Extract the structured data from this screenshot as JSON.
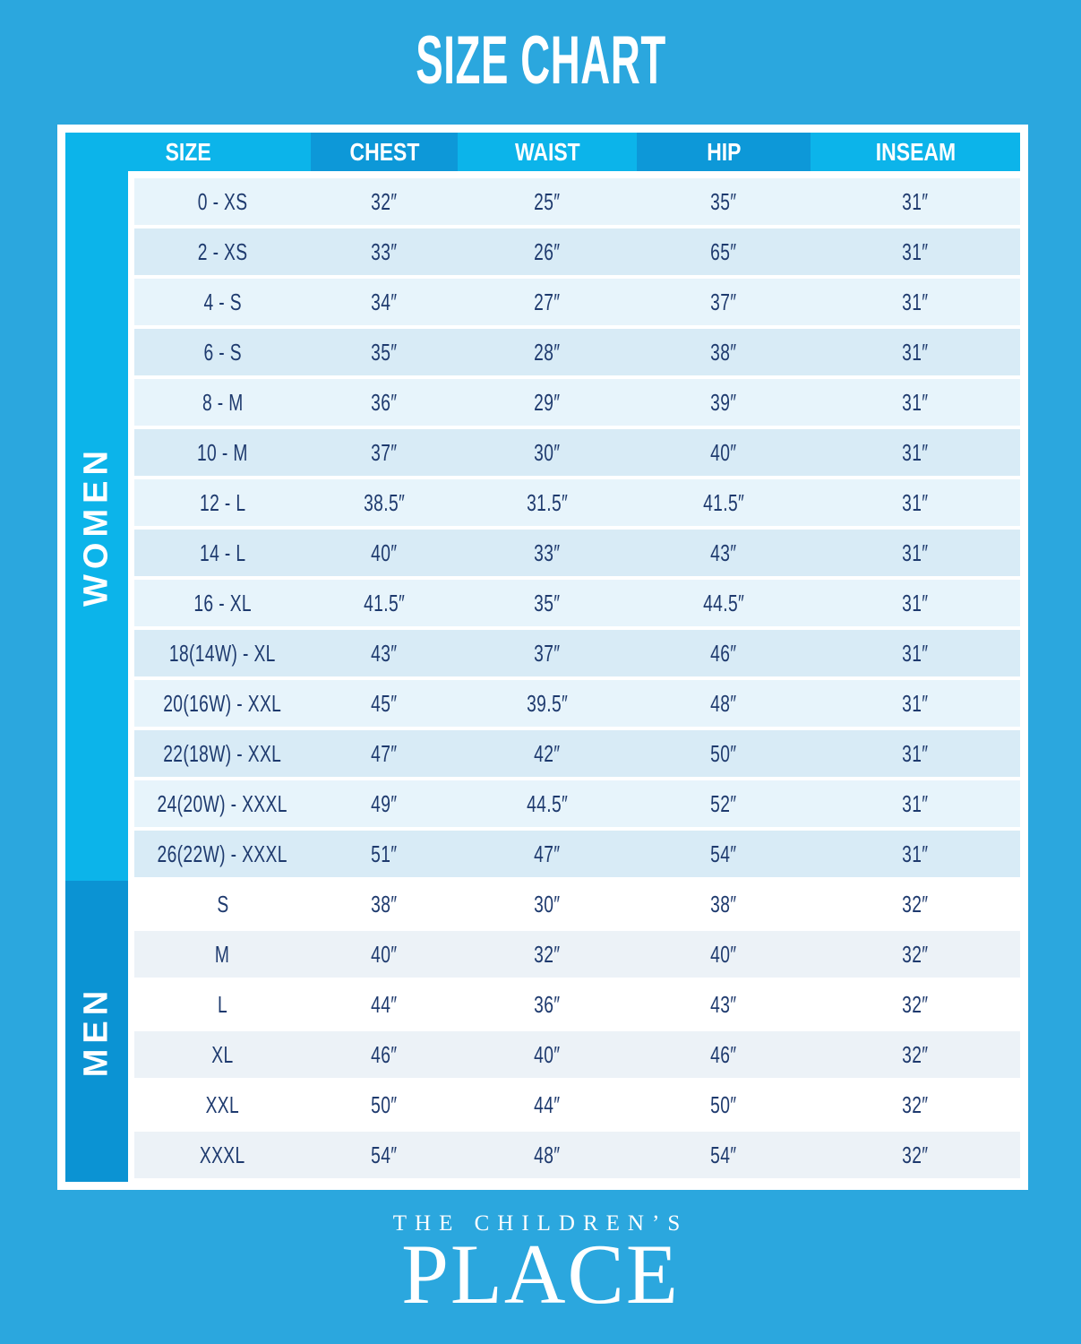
{
  "chart_data": {
    "type": "table",
    "title": "SIZE CHART",
    "columns": [
      "SIZE",
      "CHEST",
      "WAIST",
      "HIP",
      "INSEAM"
    ],
    "sections": [
      {
        "label": "WOMEN",
        "rows": [
          [
            "0 - XS",
            "32″",
            "25″",
            "35″",
            "31″"
          ],
          [
            "2 - XS",
            "33″",
            "26″",
            "65″",
            "31″"
          ],
          [
            "4 - S",
            "34″",
            "27″",
            "37″",
            "31″"
          ],
          [
            "6 - S",
            "35″",
            "28″",
            "38″",
            "31″"
          ],
          [
            "8 - M",
            "36″",
            "29″",
            "39″",
            "31″"
          ],
          [
            "10 - M",
            "37″",
            "30″",
            "40″",
            "31″"
          ],
          [
            "12 - L",
            "38.5″",
            "31.5″",
            "41.5″",
            "31″"
          ],
          [
            "14 - L",
            "40″",
            "33″",
            "43″",
            "31″"
          ],
          [
            "16 - XL",
            "41.5″",
            "35″",
            "44.5″",
            "31″"
          ],
          [
            "18(14W) - XL",
            "43″",
            "37″",
            "46″",
            "31″"
          ],
          [
            "20(16W) - XXL",
            "45″",
            "39.5″",
            "48″",
            "31″"
          ],
          [
            "22(18W) - XXL",
            "47″",
            "42″",
            "50″",
            "31″"
          ],
          [
            "24(20W) - XXXL",
            "49″",
            "44.5″",
            "52″",
            "31″"
          ],
          [
            "26(22W) - XXXL",
            "51″",
            "47″",
            "54″",
            "31″"
          ]
        ]
      },
      {
        "label": "MEN",
        "rows": [
          [
            "S",
            "38″",
            "30″",
            "38″",
            "32″"
          ],
          [
            "M",
            "40″",
            "32″",
            "40″",
            "32″"
          ],
          [
            "L",
            "44″",
            "36″",
            "43″",
            "32″"
          ],
          [
            "XL",
            "46″",
            "40″",
            "46″",
            "32″"
          ],
          [
            "XXL",
            "50″",
            "44″",
            "50″",
            "32″"
          ],
          [
            "XXXL",
            "54″",
            "48″",
            "54″",
            "32″"
          ]
        ]
      }
    ]
  },
  "logo": {
    "line1": "THE CHILDREN’S",
    "line2": "PLACE"
  },
  "colors": {
    "background": "#2BA7DE",
    "header_light": "#0CB4EA",
    "header_dark": "#0D98D8",
    "men_sidebar": "#0B93D3",
    "women_row_light": "#E7F4FB",
    "women_row_dark": "#D8EBF6",
    "men_row_light": "#FFFFFF",
    "men_row_dark": "#ECF2F7",
    "cell_text": "#1E3A6E",
    "frame": "#FFFFFF"
  }
}
